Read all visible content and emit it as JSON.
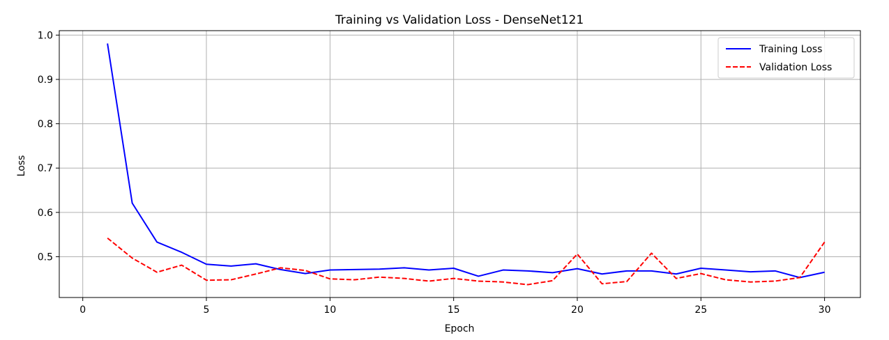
{
  "chart_data": {
    "type": "line",
    "title": "Training vs Validation Loss - DenseNet121",
    "xlabel": "Epoch",
    "ylabel": "Loss",
    "xlim": [
      -0.95,
      31.45
    ],
    "ylim": [
      0.408,
      1.01
    ],
    "xticks": [
      0,
      5,
      10,
      15,
      20,
      25,
      30
    ],
    "xtick_labels": [
      "0",
      "5",
      "10",
      "15",
      "20",
      "25",
      "30"
    ],
    "yticks": [
      0.5,
      0.6,
      0.7,
      0.8,
      0.9,
      1.0
    ],
    "ytick_labels": [
      "0.5",
      "0.6",
      "0.7",
      "0.8",
      "0.9",
      "1.0"
    ],
    "grid": true,
    "legend_position": "top-right",
    "x": [
      1,
      2,
      3,
      4,
      5,
      6,
      7,
      8,
      9,
      10,
      11,
      12,
      13,
      14,
      15,
      16,
      17,
      18,
      19,
      20,
      21,
      22,
      23,
      24,
      25,
      26,
      27,
      28,
      29,
      30
    ],
    "series": [
      {
        "name": "Training Loss",
        "color": "#0000ff",
        "style": "solid",
        "values": [
          0.981,
          0.621,
          0.533,
          0.51,
          0.483,
          0.479,
          0.484,
          0.471,
          0.462,
          0.47,
          0.471,
          0.472,
          0.475,
          0.47,
          0.474,
          0.456,
          0.47,
          0.468,
          0.464,
          0.473,
          0.461,
          0.468,
          0.468,
          0.461,
          0.474,
          0.47,
          0.466,
          0.468,
          0.453,
          0.465
        ]
      },
      {
        "name": "Validation Loss",
        "color": "#ff0000",
        "style": "dashed",
        "values": [
          0.542,
          0.497,
          0.465,
          0.481,
          0.447,
          0.448,
          0.461,
          0.475,
          0.469,
          0.45,
          0.448,
          0.454,
          0.451,
          0.445,
          0.451,
          0.445,
          0.443,
          0.437,
          0.446,
          0.506,
          0.439,
          0.444,
          0.508,
          0.451,
          0.462,
          0.448,
          0.443,
          0.445,
          0.453,
          0.533
        ]
      }
    ]
  }
}
